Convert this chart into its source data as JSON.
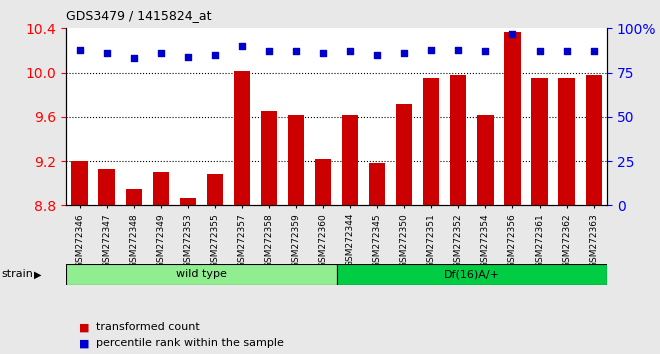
{
  "title": "GDS3479 / 1415824_at",
  "samples": [
    "GSM272346",
    "GSM272347",
    "GSM272348",
    "GSM272349",
    "GSM272353",
    "GSM272355",
    "GSM272357",
    "GSM272358",
    "GSM272359",
    "GSM272360",
    "GSM272344",
    "GSM272345",
    "GSM272350",
    "GSM272351",
    "GSM272352",
    "GSM272354",
    "GSM272356",
    "GSM272361",
    "GSM272362",
    "GSM272363"
  ],
  "bar_values": [
    9.2,
    9.13,
    8.95,
    9.1,
    8.87,
    9.08,
    10.01,
    9.65,
    9.62,
    9.22,
    9.62,
    9.18,
    9.72,
    9.95,
    9.98,
    9.62,
    10.37,
    9.95,
    9.95,
    9.98
  ],
  "blue_values": [
    88,
    86,
    83,
    86,
    84,
    85,
    90,
    87,
    87,
    86,
    87,
    85,
    86,
    88,
    88,
    87,
    97,
    87,
    87,
    87
  ],
  "groups": [
    {
      "label": "wild type",
      "start": 0,
      "end": 9,
      "color": "#90EE90"
    },
    {
      "label": "Df(16)A/+",
      "start": 10,
      "end": 19,
      "color": "#00CC44"
    }
  ],
  "ylim_left": [
    8.8,
    10.4
  ],
  "ylim_right": [
    0,
    100
  ],
  "yticks_left": [
    8.8,
    9.2,
    9.6,
    10.0,
    10.4
  ],
  "yticks_right": [
    0,
    25,
    50,
    75,
    100
  ],
  "bar_color": "#CC0000",
  "blue_color": "#0000CC",
  "background_color": "#E8E8E8",
  "plot_bg_color": "#FFFFFF",
  "legend_items": [
    "transformed count",
    "percentile rank within the sample"
  ],
  "strain_label": "strain"
}
